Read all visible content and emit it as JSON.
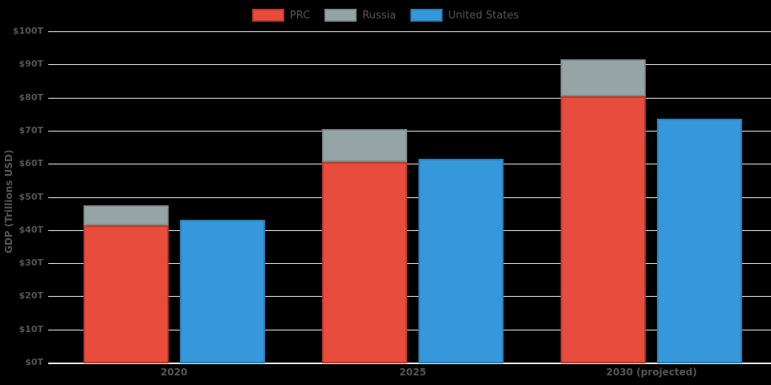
{
  "chart": {
    "background": "#000000",
    "text_color": "#555555",
    "grid_color": "#e6e6e6"
  },
  "chart_data": {
    "type": "bar",
    "layout_note": "PRC and Russia are stacked in one bar; United States is a separate bar beside them in each category group",
    "title": "",
    "ylabel": "GDP (Trillions USD)",
    "xlabel": "",
    "categories": [
      "2020",
      "2025",
      "2030 (projected)"
    ],
    "series": [
      {
        "name": "PRC",
        "stack": "prc-russia",
        "color": "#e74c3c",
        "border_color": "#c0392b",
        "values": [
          41.5,
          60.5,
          80.5
        ]
      },
      {
        "name": "Russia",
        "stack": "prc-russia",
        "color": "#95a5a6",
        "border_color": "#7f8c8d",
        "values": [
          6,
          10,
          11
        ]
      },
      {
        "name": "United States",
        "stack": "us",
        "color": "#3498db",
        "border_color": "#2980b9",
        "values": [
          43,
          61.5,
          73.5
        ]
      }
    ],
    "ylim": [
      0,
      100
    ],
    "yticks": [
      0,
      10,
      20,
      30,
      40,
      50,
      60,
      70,
      80,
      90,
      100
    ],
    "ytick_labels": [
      "$0T",
      "$10T",
      "$20T",
      "$30T",
      "$40T",
      "$50T",
      "$60T",
      "$70T",
      "$80T",
      "$90T",
      "$100T"
    ],
    "grid": true,
    "legend_position": "top-center"
  }
}
